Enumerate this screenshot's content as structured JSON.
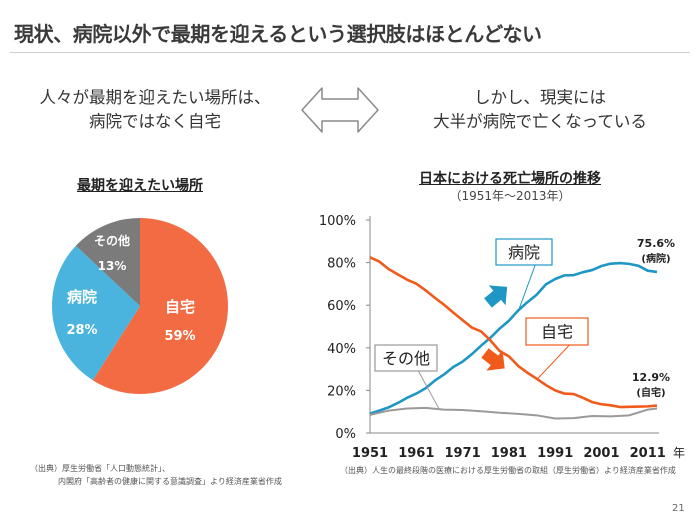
{
  "slide": {
    "title": "現状、病院以外で最期を迎えるという選択肢はほとんどない",
    "left_message": [
      "人々が最期を迎えたい場所は、",
      "病院ではなく自宅"
    ],
    "right_message": [
      "しかし、現実には",
      "大半が病院で亡くなっている"
    ],
    "source_left": [
      "（出典）厚生労働省「人口動態統計」、",
      "内閣府「高齢者の健康に関する意識調査」より経済産業省作成"
    ],
    "source_right": "（出典）人生の最終段階の医療における厚生労働省の取組（厚生労働省）より経済産業省作成",
    "page_number": "21"
  },
  "chart_data": [
    {
      "type": "pie",
      "title": "最期を迎えたい場所",
      "slices": [
        {
          "label": "自宅",
          "value": 59,
          "display": "59%",
          "color": "#f26b43"
        },
        {
          "label": "病院",
          "value": 28,
          "display": "28%",
          "color": "#4ab4de"
        },
        {
          "label": "その他",
          "value": 13,
          "display": "13%",
          "color": "#7b7b7b"
        }
      ]
    },
    {
      "type": "line",
      "title": "日本における死亡場所の推移",
      "subtitle": "（1951年〜2013年）",
      "xlabel": "年",
      "x_ticks": [
        1951,
        1961,
        1971,
        1981,
        1991,
        2001,
        2011
      ],
      "y_ticks": [
        "0%",
        "20%",
        "40%",
        "60%",
        "80%",
        "100%"
      ],
      "ylim": [
        0,
        100
      ],
      "xlim": [
        1951,
        2013
      ],
      "series": [
        {
          "name": "病院",
          "color": "#1f97c4",
          "x": [
            1951,
            1953,
            1955,
            1957,
            1959,
            1961,
            1963,
            1965,
            1967,
            1969,
            1971,
            1973,
            1975,
            1977,
            1979,
            1981,
            1983,
            1985,
            1987,
            1989,
            1991,
            1993,
            1995,
            1997,
            1999,
            2001,
            2003,
            2005,
            2007,
            2009,
            2011,
            2013
          ],
          "y": [
            9.1,
            10.5,
            12.0,
            14.1,
            16.5,
            18.5,
            21.0,
            24.6,
            27.5,
            31.0,
            33.5,
            37.0,
            41.0,
            44.7,
            49.0,
            52.7,
            57.5,
            61.4,
            64.9,
            69.8,
            72.3,
            74.0,
            74.1,
            75.5,
            76.5,
            78.4,
            79.5,
            79.8,
            79.4,
            78.5,
            76.2,
            75.6
          ]
        },
        {
          "name": "自宅",
          "color": "#f05a1a",
          "x": [
            1951,
            1953,
            1955,
            1957,
            1959,
            1961,
            1963,
            1965,
            1967,
            1969,
            1971,
            1973,
            1975,
            1977,
            1979,
            1981,
            1983,
            1985,
            1987,
            1989,
            1991,
            1993,
            1995,
            1997,
            1999,
            2001,
            2003,
            2005,
            2007,
            2009,
            2011,
            2013
          ],
          "y": [
            82.5,
            80.5,
            77.0,
            74.5,
            72.0,
            70.1,
            67.0,
            63.5,
            60.2,
            56.5,
            53.0,
            49.5,
            47.7,
            43.5,
            38.5,
            36.0,
            31.5,
            28.3,
            25.5,
            22.5,
            20.0,
            18.5,
            18.3,
            16.5,
            14.5,
            13.5,
            13.0,
            12.2,
            12.3,
            12.4,
            12.5,
            12.9
          ]
        },
        {
          "name": "その他",
          "color": "#9a9a9a",
          "x": [
            1951,
            1955,
            1959,
            1963,
            1967,
            1971,
            1975,
            1979,
            1983,
            1987,
            1991,
            1995,
            1999,
            2003,
            2007,
            2011,
            2013
          ],
          "y": [
            8.5,
            10.5,
            11.5,
            11.8,
            11.0,
            10.8,
            10.2,
            9.5,
            9.0,
            8.3,
            6.8,
            7.0,
            8.0,
            7.8,
            8.3,
            11.0,
            11.5
          ]
        }
      ],
      "annotations": {
        "hospital_end": "75.6%",
        "hospital_end_label": "(病院)",
        "home_end": "12.9%",
        "home_end_label": "(自宅)"
      }
    }
  ]
}
